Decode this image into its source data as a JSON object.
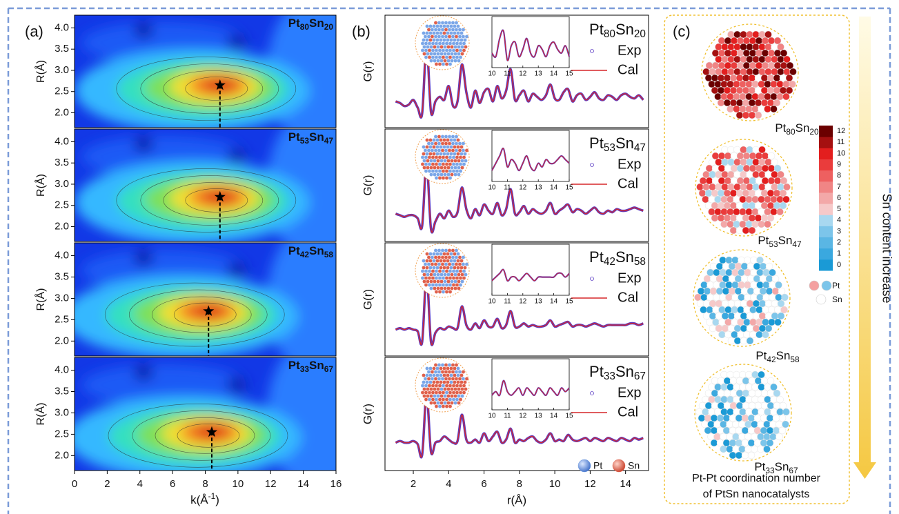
{
  "chart_data": [
    {
      "type": "heatmap",
      "label": "(a)",
      "ylabel": "R(Å)",
      "xlabel": [
        "k(Å",
        "-1",
        ")"
      ],
      "xlim": [
        0,
        16
      ],
      "xticks": [
        0,
        2,
        4,
        6,
        8,
        10,
        12,
        14,
        16
      ],
      "ylim": [
        1.65,
        4.3
      ],
      "yticks": [
        {
          "value": 2,
          "label": "2.0"
        },
        {
          "value": 2.5,
          "label": "2.5"
        },
        {
          "value": 3,
          "label": "3.0"
        },
        {
          "value": 3.5,
          "label": "3.5"
        },
        {
          "value": 4,
          "label": "4.0"
        }
      ],
      "subplots": [
        {
          "title": [
            "Pt",
            "80",
            "Sn",
            "20"
          ],
          "peak": {
            "k": 8.9,
            "R": 2.65
          }
        },
        {
          "title": [
            "Pt",
            "53",
            "Sn",
            "47"
          ],
          "peak": {
            "k": 8.9,
            "R": 2.7
          }
        },
        {
          "title": [
            "Pt",
            "42",
            "Sn",
            "58"
          ],
          "peak": {
            "k": 8.2,
            "R": 2.7
          }
        },
        {
          "title": [
            "Pt",
            "33",
            "Sn",
            "67"
          ],
          "peak": {
            "k": 8.4,
            "R": 2.55
          }
        }
      ]
    },
    {
      "type": "line",
      "label": "(b)",
      "ylabel": "G(r)",
      "xlabel": "r(Å)",
      "xlim": [
        0.4,
        15.3
      ],
      "xticks": [
        2,
        4,
        6,
        8,
        10,
        12,
        14
      ],
      "ylim": [
        -1.5,
        5.8
      ],
      "inset_xlim": [
        10,
        15
      ],
      "inset_xticks": [
        10,
        11,
        12,
        13,
        14,
        15
      ],
      "inset_ylim": [
        0,
        1.4
      ],
      "x": [
        1,
        1.25,
        1.5,
        1.75,
        2,
        2.25,
        2.5,
        2.75,
        3,
        3.25,
        3.5,
        3.75,
        4,
        4.25,
        4.5,
        4.75,
        5,
        5.25,
        5.5,
        5.75,
        6,
        6.25,
        6.5,
        6.75,
        7,
        7.25,
        7.5,
        7.75,
        8,
        8.25,
        8.5,
        8.75,
        9,
        9.25,
        9.5,
        9.75,
        10,
        10.25,
        10.5,
        10.75,
        11,
        11.25,
        11.5,
        11.75,
        12,
        12.25,
        12.5,
        12.75,
        13,
        13.25,
        13.5,
        13.75,
        14,
        14.25,
        14.5,
        14.75,
        15
      ],
      "atom_legend": [
        {
          "name": "Pt",
          "color": "#6d9be0"
        },
        {
          "name": "Sn",
          "color": "#e0604a"
        }
      ],
      "subplots": [
        {
          "title": [
            "Pt",
            "80",
            "Sn",
            "20"
          ],
          "series": [
            {
              "name": "Exp",
              "color": "#5b3cc4",
              "values": [
                0.2,
                0.1,
                -0.1,
                0,
                0.3,
                -0.2,
                -0.6,
                3.8,
                -0.5,
                0.2,
                0.5,
                0.3,
                1.2,
                -0.1,
                0.2,
                2.6,
                0.8,
                -0.2,
                0.9,
                0.1,
                0.8,
                1.0,
                0.2,
                1.2,
                0.4,
                0.9,
                2.3,
                0.3,
                0.6,
                0.9,
                0.2,
                0.7,
                0.5,
                0.3,
                0.6,
                1.3,
                0.4,
                0.3,
                0.8,
                1.0,
                0.2,
                0.6,
                0.7,
                0.3,
                0.5,
                0.8,
                0.4,
                0.3,
                0.6,
                0.5,
                0.3,
                0.6,
                0.7,
                0.5,
                0.4,
                0.6,
                0.3
              ]
            },
            {
              "name": "Cal",
              "color": "#d62728",
              "values": [
                0.2,
                0.1,
                -0.1,
                0,
                0.3,
                -0.2,
                -0.6,
                3.8,
                -0.5,
                0.2,
                0.5,
                0.3,
                1.2,
                -0.1,
                0.2,
                2.6,
                0.8,
                -0.2,
                0.9,
                0.1,
                0.8,
                1.0,
                0.2,
                1.2,
                0.4,
                0.9,
                2.3,
                0.3,
                0.6,
                0.9,
                0.2,
                0.7,
                0.5,
                0.3,
                0.6,
                1.3,
                0.4,
                0.3,
                0.8,
                1.0,
                0.2,
                0.6,
                0.7,
                0.3,
                0.5,
                0.8,
                0.4,
                0.3,
                0.6,
                0.5,
                0.3,
                0.6,
                0.7,
                0.5,
                0.4,
                0.6,
                0.3
              ]
            }
          ]
        },
        {
          "title": [
            "Pt",
            "53",
            "Sn",
            "47"
          ],
          "series": [
            {
              "name": "Exp",
              "color": "#5b3cc4",
              "values": [
                0.3,
                0.2,
                0.1,
                0.2,
                0.2,
                0,
                -0.5,
                3.6,
                -0.7,
                -0.2,
                0.3,
                0,
                0.5,
                0.1,
                0.4,
                2.0,
                0.6,
                0,
                0.6,
                0.2,
                0.9,
                0.5,
                0.3,
                1.0,
                0.2,
                0.6,
                1.9,
                0.3,
                0.4,
                0.8,
                0.3,
                0.6,
                0.4,
                0.3,
                0.5,
                1.0,
                0.3,
                0.5,
                0.7,
                0.9,
                0.4,
                0.6,
                0.5,
                0.3,
                0.5,
                0.7,
                0.4,
                0.3,
                0.5,
                0.4,
                0.6,
                0.5,
                0.5,
                0.6,
                0.7,
                0.6,
                0.5
              ]
            },
            {
              "name": "Cal",
              "color": "#d62728",
              "values": [
                0.3,
                0.2,
                0.1,
                0.2,
                0.2,
                0,
                -0.5,
                3.6,
                -0.7,
                -0.2,
                0.3,
                0,
                0.5,
                0.1,
                0.4,
                2.0,
                0.6,
                0,
                0.6,
                0.2,
                0.9,
                0.5,
                0.3,
                1.0,
                0.2,
                0.6,
                1.9,
                0.3,
                0.4,
                0.8,
                0.3,
                0.6,
                0.4,
                0.3,
                0.5,
                1.0,
                0.3,
                0.5,
                0.7,
                0.9,
                0.4,
                0.6,
                0.5,
                0.3,
                0.5,
                0.7,
                0.4,
                0.3,
                0.5,
                0.4,
                0.6,
                0.5,
                0.5,
                0.6,
                0.7,
                0.6,
                0.5
              ]
            }
          ]
        },
        {
          "title": [
            "Pt",
            "42",
            "Sn",
            "58"
          ],
          "series": [
            {
              "name": "Exp",
              "color": "#5b3cc4",
              "values": [
                0.2,
                0.3,
                0.2,
                0.3,
                0.2,
                0.1,
                -0.6,
                3.7,
                -0.6,
                0,
                0.3,
                0.2,
                0.4,
                0.3,
                0.3,
                1.7,
                0.5,
                0.2,
                0.6,
                0.3,
                0.8,
                0.4,
                0.4,
                0.9,
                0.3,
                0.5,
                1.4,
                0.4,
                0.4,
                0.6,
                0.4,
                0.5,
                0.4,
                0.4,
                0.5,
                0.8,
                0.4,
                0.5,
                0.6,
                0.7,
                0.4,
                0.5,
                0.5,
                0.4,
                0.5,
                0.6,
                0.5,
                0.4,
                0.5,
                0.5,
                0.5,
                0.5,
                0.5,
                0.6,
                0.6,
                0.5,
                0.6
              ]
            },
            {
              "name": "Cal",
              "color": "#d62728",
              "values": [
                0.2,
                0.3,
                0.2,
                0.3,
                0.2,
                0.1,
                -0.6,
                3.7,
                -0.6,
                0,
                0.3,
                0.2,
                0.4,
                0.3,
                0.3,
                1.7,
                0.5,
                0.2,
                0.6,
                0.3,
                0.8,
                0.4,
                0.4,
                0.9,
                0.3,
                0.5,
                1.4,
                0.4,
                0.4,
                0.6,
                0.4,
                0.5,
                0.4,
                0.4,
                0.5,
                0.8,
                0.4,
                0.5,
                0.6,
                0.7,
                0.4,
                0.5,
                0.5,
                0.4,
                0.5,
                0.6,
                0.5,
                0.4,
                0.5,
                0.5,
                0.5,
                0.5,
                0.5,
                0.6,
                0.6,
                0.5,
                0.6
              ]
            }
          ]
        },
        {
          "title": [
            "Pt",
            "33",
            "Sn",
            "67"
          ],
          "series": [
            {
              "name": "Exp",
              "color": "#5b3cc4",
              "values": [
                0.3,
                0.4,
                0.3,
                0.3,
                0.4,
                0.2,
                -0.5,
                3.4,
                -0.3,
                0.3,
                0.4,
                0.7,
                0.5,
                0.3,
                0.4,
                2.1,
                0.5,
                0.3,
                0.5,
                0.3,
                0.9,
                0.4,
                0.7,
                1.0,
                0.3,
                0.5,
                1.2,
                0.3,
                0.5,
                0.4,
                0.6,
                0.7,
                0.4,
                0.3,
                0.5,
                0.9,
                0.4,
                0.5,
                0.4,
                0.8,
                0.5,
                0.4,
                0.5,
                0.6,
                0.4,
                0.6,
                0.5,
                0.4,
                0.6,
                0.5,
                0.4,
                0.6,
                0.5,
                0.4,
                0.6,
                0.5,
                0.6
              ]
            },
            {
              "name": "Cal",
              "color": "#d62728",
              "values": [
                0.3,
                0.4,
                0.3,
                0.3,
                0.4,
                0.2,
                -0.5,
                3.4,
                -0.3,
                0.3,
                0.4,
                0.7,
                0.5,
                0.3,
                0.4,
                2.1,
                0.5,
                0.3,
                0.5,
                0.3,
                0.9,
                0.4,
                0.7,
                1.0,
                0.3,
                0.5,
                1.2,
                0.3,
                0.5,
                0.4,
                0.6,
                0.7,
                0.4,
                0.3,
                0.5,
                0.9,
                0.4,
                0.5,
                0.4,
                0.8,
                0.5,
                0.4,
                0.5,
                0.6,
                0.4,
                0.6,
                0.5,
                0.4,
                0.6,
                0.5,
                0.4,
                0.6,
                0.5,
                0.4,
                0.6,
                0.5,
                0.6
              ]
            }
          ]
        }
      ]
    },
    {
      "type": "colorbar",
      "label": "(c)",
      "spheres": [
        {
          "title": [
            "Pt",
            "80",
            "Sn",
            "20"
          ]
        },
        {
          "title": [
            "Pt",
            "53",
            "Sn",
            "47"
          ]
        },
        {
          "title": [
            "Pt",
            "42",
            "Sn",
            "58"
          ]
        },
        {
          "title": [
            "Pt",
            "33",
            "Sn",
            "67"
          ]
        }
      ],
      "colorbar": {
        "ticks": [
          0,
          1,
          2,
          3,
          4,
          5,
          6,
          7,
          8,
          9,
          10,
          11,
          12
        ],
        "colors": [
          "#1a9ad6",
          "#3aa8df",
          "#5ab6e4",
          "#7cc5ea",
          "#a8d8f0",
          "#f6c9c9",
          "#f3a8a8",
          "#f08585",
          "#ee6060",
          "#ea3c3c",
          "#e31e1e",
          "#a51010",
          "#6b0000"
        ]
      },
      "legend": [
        {
          "name": "Pt",
          "colors": [
            "#f4a0a0",
            "#7cc5ea"
          ]
        },
        {
          "name": "Sn",
          "colors": [
            "#ffffff"
          ]
        }
      ],
      "caption": [
        "Pt-Pt  coordination number",
        "of PtSn nanocatalysts"
      ],
      "arrow_label": "Sn content increase"
    }
  ]
}
